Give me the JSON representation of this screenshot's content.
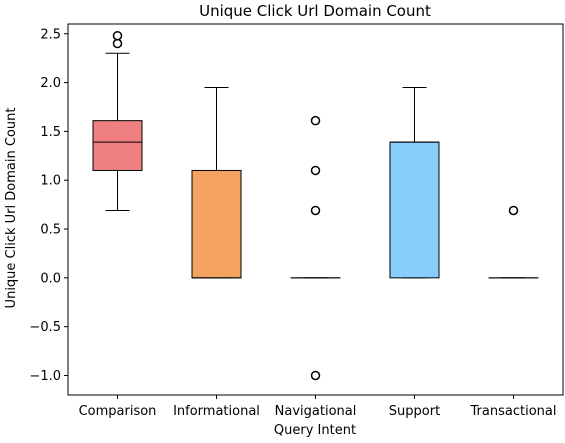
{
  "chart_data": {
    "type": "box",
    "title": "Unique Click Url Domain Count",
    "xlabel": "Query Intent",
    "ylabel": "Unique Click Url Domain Count",
    "ylim": [
      -1.2,
      2.6
    ],
    "yticks": [
      2.5,
      2.0,
      1.5,
      1.0,
      0.5,
      0.0,
      -0.5,
      -1.0
    ],
    "ytick_labels": [
      "2.5",
      "2.0",
      "1.5",
      "1.0",
      "0.5",
      "0.0",
      "−0.5",
      "−1.0"
    ],
    "grid": false,
    "categories": [
      "Comparison",
      "Informational",
      "Navigational",
      "Support",
      "Transactional"
    ],
    "boxes": [
      {
        "category": "Comparison",
        "whisker_low": 0.69,
        "q1": 1.1,
        "median": 1.39,
        "q3": 1.61,
        "whisker_high": 2.3,
        "outliers": [
          2.4,
          2.48
        ],
        "color": "#F08080"
      },
      {
        "category": "Informational",
        "whisker_low": 0.0,
        "q1": 0.0,
        "median": 0.0,
        "q3": 1.1,
        "whisker_high": 1.95,
        "outliers": [],
        "color": "#F4A460"
      },
      {
        "category": "Navigational",
        "whisker_low": 0.0,
        "q1": 0.0,
        "median": 0.0,
        "q3": 0.0,
        "whisker_high": 0.0,
        "outliers": [
          1.61,
          1.1,
          0.69,
          -1.0
        ],
        "color": "#DDA0DD"
      },
      {
        "category": "Support",
        "whisker_low": 0.0,
        "q1": 0.0,
        "median": 1.39,
        "q3": 1.39,
        "whisker_high": 1.95,
        "outliers": [],
        "color": "#87CEFA"
      },
      {
        "category": "Transactional",
        "whisker_low": 0.0,
        "q1": 0.0,
        "median": 0.0,
        "q3": 0.0,
        "whisker_high": 0.0,
        "outliers": [
          0.69
        ],
        "color": "#90EE90"
      }
    ]
  }
}
